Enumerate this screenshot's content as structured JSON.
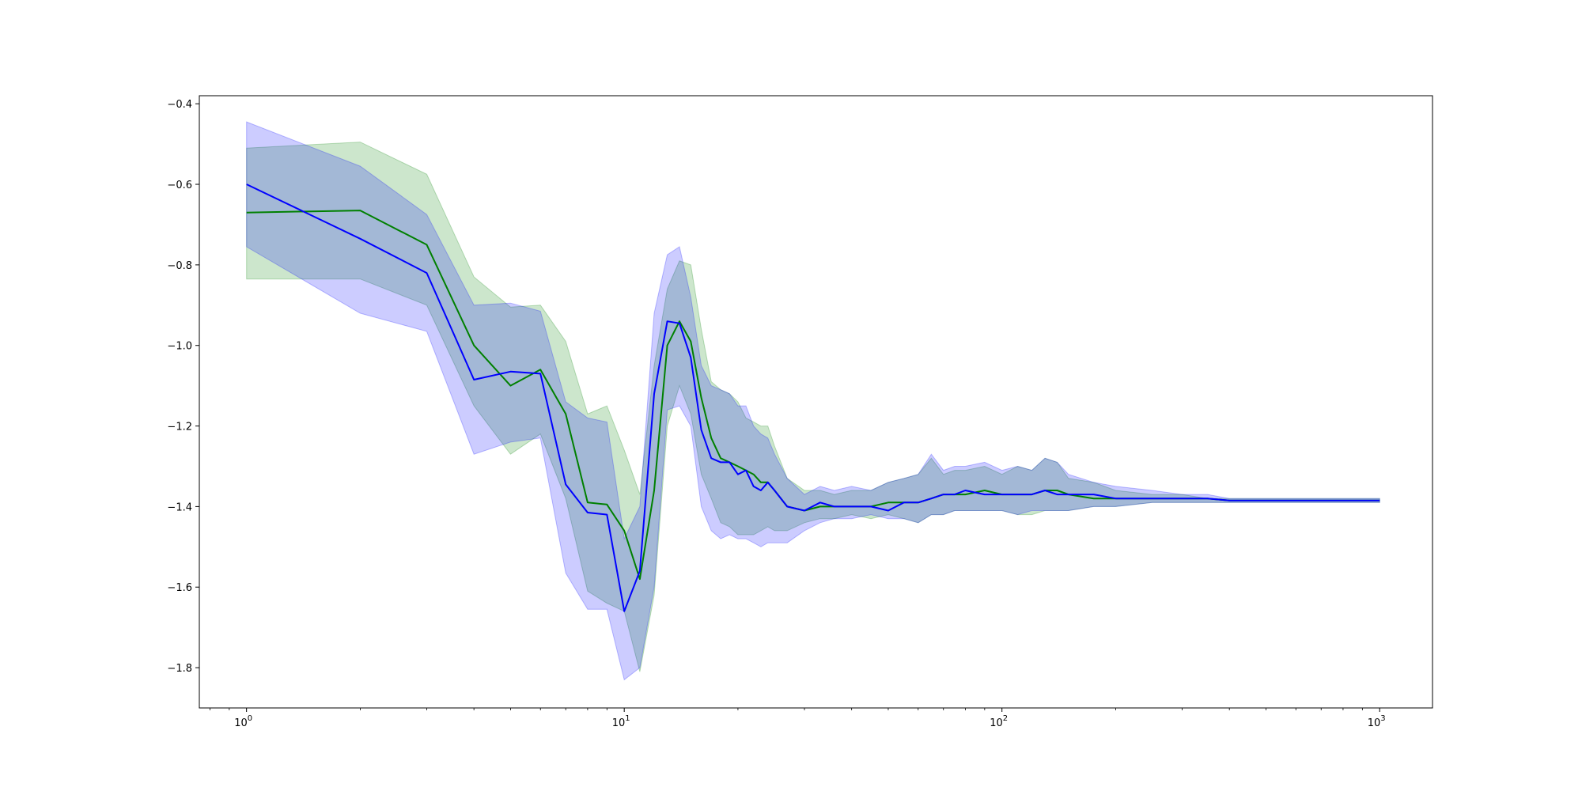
{
  "chart_data": {
    "type": "line",
    "xscale": "log",
    "xlim": [
      0.75,
      1380
    ],
    "ylim": [
      -1.9,
      -0.38
    ],
    "grid": false,
    "legend": "none",
    "xticks": [
      {
        "value": 1,
        "base": "10",
        "exp": "0"
      },
      {
        "value": 10,
        "base": "10",
        "exp": "1"
      },
      {
        "value": 100,
        "base": "10",
        "exp": "2"
      },
      {
        "value": 1000,
        "base": "10",
        "exp": "3"
      }
    ],
    "yticks": [
      {
        "value": -0.4,
        "label": "−0.4"
      },
      {
        "value": -0.6,
        "label": "−0.6"
      },
      {
        "value": -0.8,
        "label": "−0.8"
      },
      {
        "value": -1.0,
        "label": "−1.0"
      },
      {
        "value": -1.2,
        "label": "−1.2"
      },
      {
        "value": -1.4,
        "label": "−1.4"
      },
      {
        "value": -1.6,
        "label": "−1.6"
      },
      {
        "value": -1.8,
        "label": "−1.8"
      }
    ],
    "series": [
      {
        "color": "#008000",
        "band_color": "#008000",
        "band_opacity": 0.2,
        "x": [
          1,
          2,
          3,
          4,
          5,
          6,
          7,
          8,
          9,
          10,
          11,
          12,
          13,
          14,
          15,
          16,
          17,
          18,
          19,
          20,
          21,
          22,
          23,
          24,
          25,
          27,
          30,
          33,
          36,
          40,
          45,
          50,
          55,
          60,
          65,
          70,
          75,
          80,
          90,
          100,
          110,
          120,
          130,
          140,
          150,
          175,
          200,
          250,
          300,
          350,
          400,
          500,
          600,
          700,
          800,
          900,
          1000
        ],
        "mean": [
          -0.67,
          -0.665,
          -0.75,
          -1.0,
          -1.1,
          -1.06,
          -1.17,
          -1.39,
          -1.395,
          -1.46,
          -1.58,
          -1.36,
          -1.0,
          -0.94,
          -0.99,
          -1.13,
          -1.23,
          -1.28,
          -1.29,
          -1.3,
          -1.31,
          -1.32,
          -1.34,
          -1.34,
          -1.36,
          -1.4,
          -1.41,
          -1.4,
          -1.4,
          -1.4,
          -1.4,
          -1.39,
          -1.39,
          -1.39,
          -1.38,
          -1.37,
          -1.37,
          -1.37,
          -1.36,
          -1.37,
          -1.37,
          -1.37,
          -1.36,
          -1.36,
          -1.37,
          -1.38,
          -1.38,
          -1.38,
          -1.38,
          -1.38,
          -1.385,
          -1.385,
          -1.385,
          -1.385,
          -1.385,
          -1.385,
          -1.385
        ],
        "upper": [
          -0.51,
          -0.495,
          -0.575,
          -0.83,
          -0.905,
          -0.9,
          -0.99,
          -1.17,
          -1.15,
          -1.26,
          -1.37,
          -1.05,
          -0.86,
          -0.79,
          -0.8,
          -0.96,
          -1.09,
          -1.11,
          -1.12,
          -1.14,
          -1.18,
          -1.19,
          -1.2,
          -1.2,
          -1.25,
          -1.33,
          -1.36,
          -1.36,
          -1.37,
          -1.36,
          -1.36,
          -1.34,
          -1.33,
          -1.32,
          -1.28,
          -1.32,
          -1.31,
          -1.31,
          -1.3,
          -1.32,
          -1.3,
          -1.31,
          -1.28,
          -1.29,
          -1.33,
          -1.34,
          -1.36,
          -1.37,
          -1.37,
          -1.38,
          -1.38,
          -1.38,
          -1.38,
          -1.38,
          -1.38,
          -1.38,
          -1.38
        ],
        "lower": [
          -0.835,
          -0.835,
          -0.9,
          -1.15,
          -1.27,
          -1.22,
          -1.38,
          -1.61,
          -1.64,
          -1.66,
          -1.81,
          -1.62,
          -1.2,
          -1.1,
          -1.17,
          -1.32,
          -1.38,
          -1.44,
          -1.45,
          -1.47,
          -1.47,
          -1.47,
          -1.46,
          -1.45,
          -1.46,
          -1.46,
          -1.44,
          -1.43,
          -1.43,
          -1.42,
          -1.43,
          -1.42,
          -1.43,
          -1.44,
          -1.42,
          -1.42,
          -1.41,
          -1.41,
          -1.41,
          -1.41,
          -1.42,
          -1.42,
          -1.41,
          -1.41,
          -1.41,
          -1.4,
          -1.4,
          -1.39,
          -1.39,
          -1.39,
          -1.39,
          -1.39,
          -1.39,
          -1.39,
          -1.39,
          -1.39,
          -1.39
        ]
      },
      {
        "color": "#0000ff",
        "band_color": "#0000ff",
        "band_opacity": 0.2,
        "x": [
          1,
          2,
          3,
          4,
          5,
          6,
          7,
          8,
          9,
          10,
          11,
          12,
          13,
          14,
          15,
          16,
          17,
          18,
          19,
          20,
          21,
          22,
          23,
          24,
          25,
          27,
          30,
          33,
          36,
          40,
          45,
          50,
          55,
          60,
          65,
          70,
          75,
          80,
          90,
          100,
          110,
          120,
          130,
          140,
          150,
          175,
          200,
          250,
          300,
          350,
          400,
          500,
          600,
          700,
          800,
          900,
          1000
        ],
        "mean": [
          -0.6,
          -0.735,
          -0.82,
          -1.085,
          -1.065,
          -1.07,
          -1.345,
          -1.415,
          -1.42,
          -1.66,
          -1.56,
          -1.12,
          -0.94,
          -0.945,
          -1.03,
          -1.21,
          -1.28,
          -1.29,
          -1.29,
          -1.32,
          -1.31,
          -1.35,
          -1.36,
          -1.34,
          -1.36,
          -1.4,
          -1.41,
          -1.39,
          -1.4,
          -1.4,
          -1.4,
          -1.41,
          -1.39,
          -1.39,
          -1.38,
          -1.37,
          -1.37,
          -1.36,
          -1.37,
          -1.37,
          -1.37,
          -1.37,
          -1.36,
          -1.37,
          -1.37,
          -1.37,
          -1.38,
          -1.38,
          -1.38,
          -1.38,
          -1.385,
          -1.385,
          -1.385,
          -1.385,
          -1.385,
          -1.385,
          -1.385
        ],
        "upper": [
          -0.445,
          -0.555,
          -0.675,
          -0.9,
          -0.895,
          -0.915,
          -1.14,
          -1.18,
          -1.19,
          -1.48,
          -1.4,
          -0.92,
          -0.775,
          -0.755,
          -0.88,
          -1.05,
          -1.1,
          -1.11,
          -1.12,
          -1.15,
          -1.15,
          -1.2,
          -1.22,
          -1.23,
          -1.27,
          -1.33,
          -1.37,
          -1.35,
          -1.36,
          -1.35,
          -1.36,
          -1.34,
          -1.33,
          -1.32,
          -1.27,
          -1.31,
          -1.3,
          -1.3,
          -1.29,
          -1.31,
          -1.3,
          -1.31,
          -1.28,
          -1.29,
          -1.32,
          -1.34,
          -1.35,
          -1.36,
          -1.37,
          -1.37,
          -1.38,
          -1.38,
          -1.38,
          -1.38,
          -1.38,
          -1.38,
          -1.38
        ],
        "lower": [
          -0.755,
          -0.92,
          -0.965,
          -1.27,
          -1.24,
          -1.23,
          -1.565,
          -1.655,
          -1.655,
          -1.83,
          -1.8,
          -1.6,
          -1.16,
          -1.15,
          -1.2,
          -1.4,
          -1.46,
          -1.48,
          -1.47,
          -1.48,
          -1.48,
          -1.49,
          -1.5,
          -1.49,
          -1.49,
          -1.49,
          -1.46,
          -1.44,
          -1.43,
          -1.43,
          -1.42,
          -1.43,
          -1.43,
          -1.44,
          -1.42,
          -1.42,
          -1.41,
          -1.41,
          -1.41,
          -1.41,
          -1.42,
          -1.41,
          -1.41,
          -1.41,
          -1.41,
          -1.4,
          -1.4,
          -1.39,
          -1.39,
          -1.39,
          -1.39,
          -1.39,
          -1.39,
          -1.39,
          -1.39,
          -1.39,
          -1.39
        ]
      }
    ]
  }
}
